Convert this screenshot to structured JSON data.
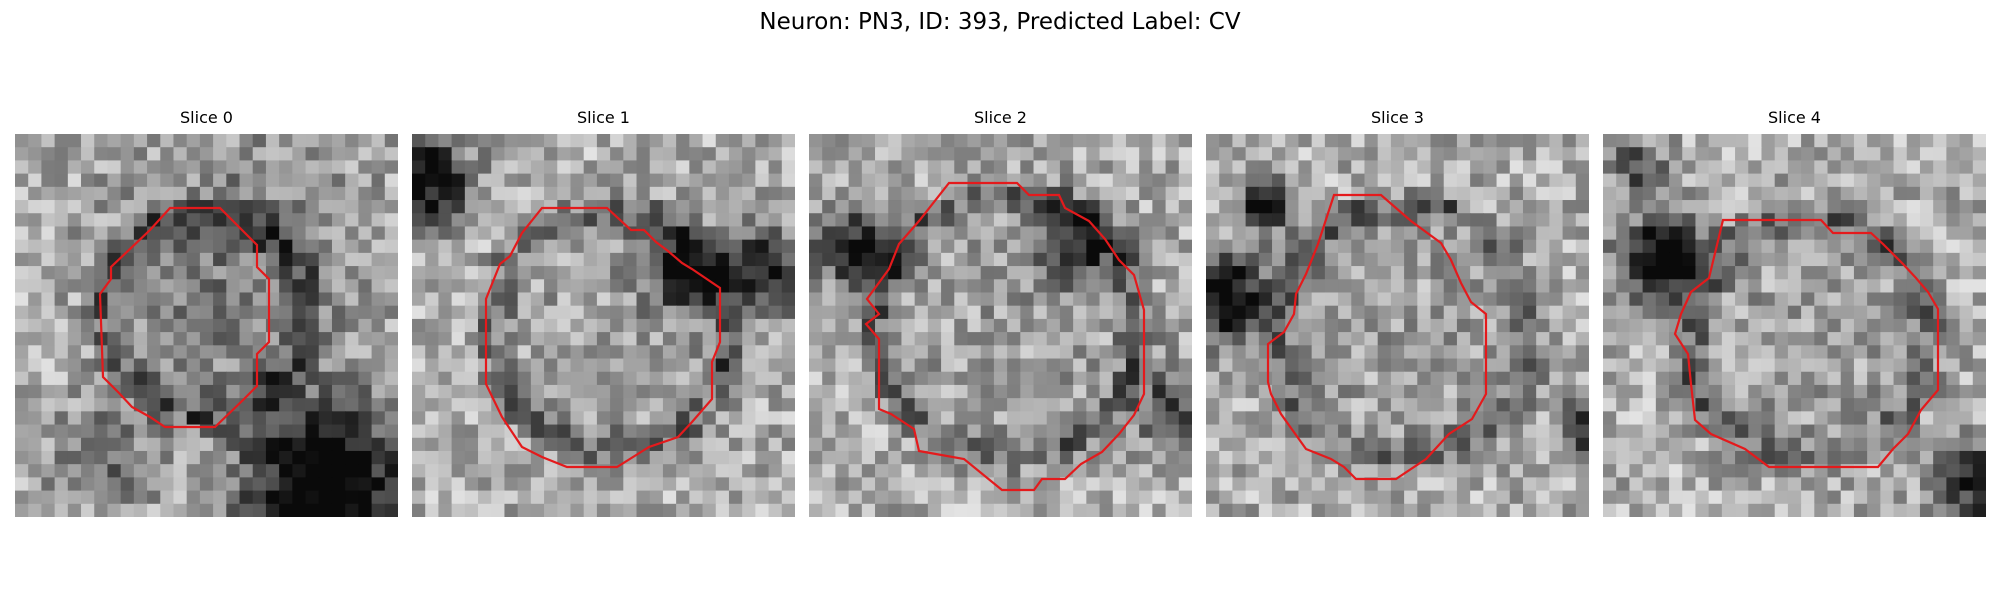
{
  "figure": {
    "title": "Neuron: PN3, ID: 393, Predicted Label: CV"
  },
  "colors": {
    "contour": "#e41a1c",
    "background": "#ffffff"
  },
  "slices": [
    {
      "label": "Slice 0",
      "seed": 11,
      "contour_color": "#e41a1c"
    },
    {
      "label": "Slice 1",
      "seed": 23,
      "contour_color": "#e41a1c"
    },
    {
      "label": "Slice 2",
      "seed": 37,
      "contour_color": "#e41a1c"
    },
    {
      "label": "Slice 3",
      "seed": 53,
      "contour_color": "#e41a1c"
    },
    {
      "label": "Slice 4",
      "seed": 71,
      "contour_color": "#e41a1c"
    }
  ]
}
